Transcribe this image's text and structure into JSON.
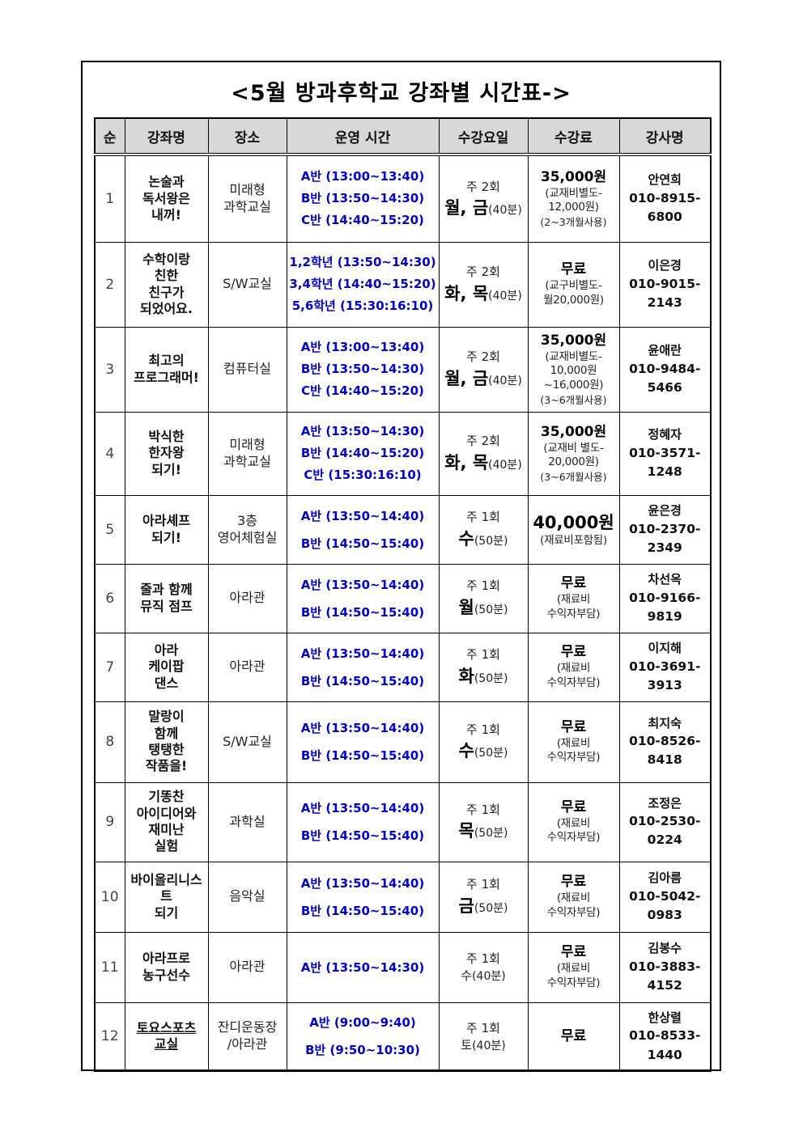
{
  "title": "<5월 방과후학교 강좌별 시간표->",
  "table": {
    "headers": [
      "순",
      "강좌명",
      "장소",
      "운영 시간",
      "수강요일",
      "수강료",
      "강사명"
    ],
    "rows": [
      {
        "no": "1",
        "name_lines": [
          "논술과",
          "독서왕은",
          "내꺼!"
        ],
        "place_lines": [
          "미래형",
          "과학교실"
        ],
        "time_lines": [
          "A반 (13:00~13:40)",
          "B반 (13:50~14:30)",
          "C반 (14:40~15:20)"
        ],
        "freq": "주 2회",
        "days": "월, 금",
        "duration": "(40분)",
        "days_emphasis": true,
        "fee_main": "35,000원",
        "fee_main_big": false,
        "fee_sub_lines": [
          "(교재비별도-",
          "12,000원)"
        ],
        "fee_note": "(2~3개월사용)",
        "teacher": "안연희",
        "phone": "010-8915-6800",
        "name_underline": false
      },
      {
        "no": "2",
        "name_lines": [
          "수학이랑",
          "친한",
          "친구가",
          "되었어요."
        ],
        "place_lines": [
          "S/W교실"
        ],
        "time_lines": [
          "1,2학년 (13:50~14:30)",
          "3,4학년 (14:40~15:20)",
          "5,6학년 (15:30:16:10)"
        ],
        "freq": "주 2회",
        "days": "화, 목",
        "duration": "(40분)",
        "days_emphasis": true,
        "fee_main": "무료",
        "fee_main_big": false,
        "fee_sub_lines": [
          "(교구비별도-",
          "월20,000원)"
        ],
        "fee_note": "",
        "teacher": "이은경",
        "phone": "010-9015-2143",
        "name_underline": false
      },
      {
        "no": "3",
        "name_lines": [
          "최고의",
          "프로그래머!"
        ],
        "place_lines": [
          "컴퓨터실"
        ],
        "time_lines": [
          "A반 (13:00~13:40)",
          "B반 (13:50~14:30)",
          "C반 (14:40~15:20)"
        ],
        "freq": "주 2회",
        "days": "월, 금",
        "duration": "(40분)",
        "days_emphasis": true,
        "fee_main": "35,000원",
        "fee_main_big": false,
        "fee_sub_lines": [
          "(교재비별도-",
          "10,000원~16,000원)"
        ],
        "fee_note": "(3~6개월사용)",
        "teacher": "윤애란",
        "phone": "010-9484-5466",
        "name_underline": false
      },
      {
        "no": "4",
        "name_lines": [
          "박식한",
          "한자왕",
          "되기!"
        ],
        "place_lines": [
          "미래형",
          "과학교실"
        ],
        "time_lines": [
          "A반 (13:50~14:30)",
          "B반 (14:40~15:20)",
          "C반 (15:30:16:10)"
        ],
        "freq": "주 2회",
        "days": "화, 목",
        "duration": "(40분)",
        "days_emphasis": true,
        "fee_main": "35,000원",
        "fee_main_big": false,
        "fee_sub_lines": [
          "(교재비 별도-",
          "20,000원)"
        ],
        "fee_note": "(3~6개월사용)",
        "teacher": "정혜자",
        "phone": "010-3571-1248",
        "name_underline": false
      },
      {
        "no": "5",
        "name_lines": [
          "아라셰프",
          "되기!"
        ],
        "place_lines": [
          "3층",
          "영어체험실"
        ],
        "time_lines": [
          "A반 (13:50~14:40)",
          "B반 (14:50~15:40)"
        ],
        "freq": "주 1회",
        "days": "수",
        "duration": "(50분)",
        "days_emphasis": true,
        "fee_main": "40,000원",
        "fee_main_big": true,
        "fee_sub_lines": [
          "(재료비포함됨)"
        ],
        "fee_note": "",
        "teacher": "윤은경",
        "phone": "010-2370-2349",
        "name_underline": false
      },
      {
        "no": "6",
        "name_lines": [
          "줄과 함께",
          "뮤직 점프"
        ],
        "place_lines": [
          "아라관"
        ],
        "time_lines": [
          "A반 (13:50~14:40)",
          "B반 (14:50~15:40)"
        ],
        "freq": "주 1회",
        "days": "월",
        "duration": "(50분)",
        "days_emphasis": true,
        "fee_main": "무료",
        "fee_main_big": false,
        "fee_sub_lines": [
          "(재료비",
          "수익자부담)"
        ],
        "fee_note": "",
        "teacher": "차선옥",
        "phone": "010-9166-9819",
        "name_underline": false
      },
      {
        "no": "7",
        "name_lines": [
          "아라",
          "케이팝",
          "댄스"
        ],
        "place_lines": [
          "아라관"
        ],
        "time_lines": [
          "A반 (13:50~14:40)",
          "B반 (14:50~15:40)"
        ],
        "freq": "주 1회",
        "days": "화",
        "duration": "(50분)",
        "days_emphasis": true,
        "fee_main": "무료",
        "fee_main_big": false,
        "fee_sub_lines": [
          "(재료비",
          "수익자부담)"
        ],
        "fee_note": "",
        "teacher": "이지해",
        "phone": "010-3691-3913",
        "name_underline": false
      },
      {
        "no": "8",
        "name_lines": [
          "말랑이",
          "함께",
          "탱탱한",
          "작품을!"
        ],
        "place_lines": [
          "S/W교실"
        ],
        "time_lines": [
          "A반 (13:50~14:40)",
          "B반 (14:50~15:40)"
        ],
        "freq": "주 1회",
        "days": "수",
        "duration": "(50분)",
        "days_emphasis": true,
        "fee_main": "무료",
        "fee_main_big": false,
        "fee_sub_lines": [
          "(재료비",
          "수익자부담)"
        ],
        "fee_note": "",
        "teacher": "최지숙",
        "phone": "010-8526-8418",
        "name_underline": false
      },
      {
        "no": "9",
        "name_lines": [
          "기똥찬",
          "아이디어와",
          "재미난",
          "실험"
        ],
        "place_lines": [
          "과학실"
        ],
        "time_lines": [
          "A반 (13:50~14:40)",
          "B반 (14:50~15:40)"
        ],
        "freq": "주 1회",
        "days": "목",
        "duration": "(50분)",
        "days_emphasis": true,
        "fee_main": "무료",
        "fee_main_big": false,
        "fee_sub_lines": [
          "(재료비",
          "수익자부담)"
        ],
        "fee_note": "",
        "teacher": "조정은",
        "phone": "010-2530-0224",
        "name_underline": false
      },
      {
        "no": "10",
        "name_lines": [
          "바이올리니스트",
          "되기"
        ],
        "place_lines": [
          "음악실"
        ],
        "time_lines": [
          "A반 (13:50~14:40)",
          "B반 (14:50~15:40)"
        ],
        "freq": "주 1회",
        "days": "금",
        "duration": "(50분)",
        "days_emphasis": true,
        "fee_main": "무료",
        "fee_main_big": false,
        "fee_sub_lines": [
          "(재료비",
          "수익자부담)"
        ],
        "fee_note": "",
        "teacher": "김아름",
        "phone": "010-5042-0983",
        "name_underline": false
      },
      {
        "no": "11",
        "name_lines": [
          "아라프로",
          "농구선수"
        ],
        "place_lines": [
          "아라관"
        ],
        "time_lines": [
          "A반 (13:50~14:30)"
        ],
        "freq": "주 1회",
        "days": "수",
        "duration": "(40분)",
        "days_emphasis": false,
        "fee_main": "무료",
        "fee_main_big": false,
        "fee_sub_lines": [
          "(재료비",
          "수익자부담)"
        ],
        "fee_note": "",
        "teacher": "김봉수",
        "phone": "010-3883-4152",
        "name_underline": false
      },
      {
        "no": "12",
        "name_lines": [
          "토요스포츠",
          "교실"
        ],
        "place_lines": [
          "잔디운동장",
          "/아라관"
        ],
        "time_lines": [
          "A반 (9:00~9:40)",
          "B반 (9:50~10:30)"
        ],
        "freq": "주 1회",
        "days": "토",
        "duration": "(40분)",
        "days_emphasis": false,
        "fee_main": "무료",
        "fee_main_big": false,
        "fee_sub_lines": [],
        "fee_note": "",
        "teacher": "한상렬",
        "phone": "010-8533-1440",
        "name_underline": true
      }
    ]
  }
}
